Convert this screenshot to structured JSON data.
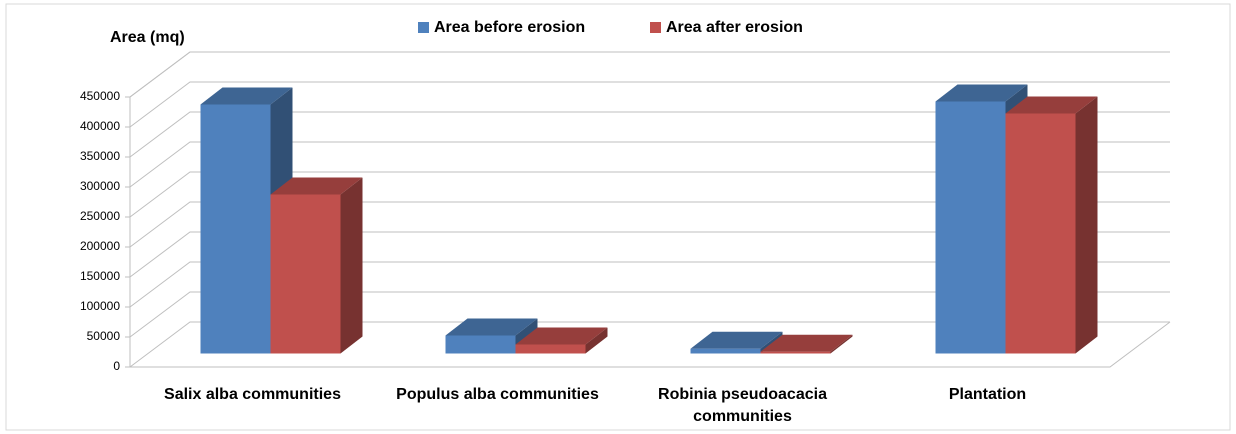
{
  "chart_data": {
    "type": "bar3d",
    "yaxis_title": "Area (mq)",
    "categories": [
      "Salix alba communities",
      "Populus alba communities",
      "Robinia pseudoacacia communities",
      "Plantation"
    ],
    "series": [
      {
        "name": "Area before erosion",
        "color": "#4f81bd",
        "values": [
          415000,
          30000,
          8000,
          420000
        ]
      },
      {
        "name": "Area after erosion",
        "color": "#c0504d",
        "values": [
          265000,
          15000,
          3000,
          400000
        ]
      }
    ],
    "ylim": [
      0,
      450000
    ],
    "yticks": [
      0,
      50000,
      100000,
      150000,
      200000,
      250000,
      300000,
      350000,
      400000,
      450000
    ],
    "grid": true,
    "legend": "top"
  }
}
